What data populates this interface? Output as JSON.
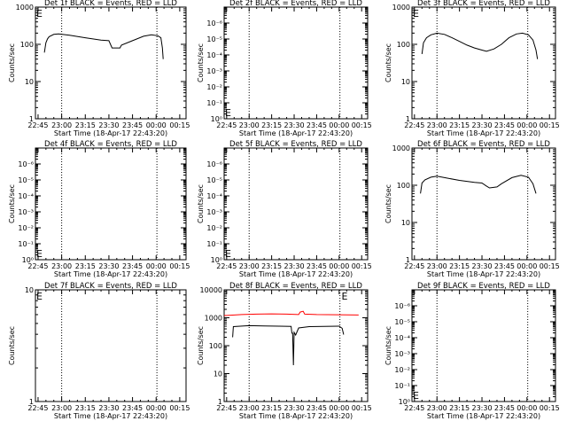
{
  "time_ticks": [
    "22:45",
    "23:00",
    "23:15",
    "23:30",
    "23:45",
    "00:00",
    "00:15"
  ],
  "xlabel": "Start Time (18-Apr-17 22:43:20)",
  "ylabel": "Counts/sec",
  "colors": {
    "events": "#000000",
    "lld": "#ff0000"
  },
  "panels": [
    {
      "title": "Det 1f BLACK = Events, RED = LLD",
      "chart_data": {
        "type": "line",
        "y_scale": "log",
        "ylim": [
          1,
          1000
        ],
        "ytick_labels": [
          "1",
          "10",
          "100",
          "1000"
        ],
        "x": [
          "22:43:20",
          "00:15:00"
        ],
        "markers": [
          {
            "label": "E",
            "x": "22:43:20"
          },
          {
            "label": "E",
            "x": "00:01:00"
          }
        ],
        "series": [
          {
            "color": "#000000",
            "points": [
              [
                "22:49",
                60
              ],
              [
                "22:50",
                110
              ],
              [
                "22:51",
                140
              ],
              [
                "22:52",
                160
              ],
              [
                "22:55",
                185
              ],
              [
                "22:58",
                190
              ],
              [
                "23:05",
                175
              ],
              [
                "23:15",
                150
              ],
              [
                "23:25",
                130
              ],
              [
                "23:30",
                125
              ],
              [
                "23:31",
                100
              ],
              [
                "23:32",
                80
              ],
              [
                "23:37",
                80
              ],
              [
                "23:38",
                95
              ],
              [
                "23:45",
                125
              ],
              [
                "23:52",
                165
              ],
              [
                "23:57",
                180
              ],
              [
                "24:01",
                170
              ],
              [
                "24:03",
                150
              ],
              [
                "24:04",
                80
              ],
              [
                "24:04.5",
                40
              ]
            ]
          }
        ]
      }
    },
    {
      "title": "Det 2f BLACK = Events, RED = LLD",
      "chart_data": {
        "type": "line",
        "y_scale": "log",
        "ylim": [
          1,
          10000000
        ],
        "ytick_labels": [
          "10⁰",
          "10⁻¹",
          "10⁻²",
          "10⁻³",
          "10⁻⁴",
          "10⁻⁵",
          "10⁻⁶"
        ],
        "markers": [
          {
            "label": "E",
            "x": "22:43:20",
            "pos": "bottom"
          },
          {
            "label": "E",
            "x": "00:01:00",
            "pos": "bottom"
          }
        ],
        "series": []
      }
    },
    {
      "title": "Det 3f BLACK = Events, RED = LLD",
      "chart_data": {
        "type": "line",
        "y_scale": "log",
        "ylim": [
          1,
          1000
        ],
        "ytick_labels": [
          "1",
          "10",
          "100",
          "1000"
        ],
        "markers": [
          {
            "label": "E",
            "x": "22:43:20"
          },
          {
            "label": "E",
            "x": "00:01:00"
          }
        ],
        "series": [
          {
            "color": "#000000",
            "points": [
              [
                "22:50",
                55
              ],
              [
                "22:51",
                110
              ],
              [
                "22:53",
                150
              ],
              [
                "22:56",
                180
              ],
              [
                "23:00",
                200
              ],
              [
                "23:05",
                185
              ],
              [
                "23:10",
                150
              ],
              [
                "23:15",
                120
              ],
              [
                "23:20",
                95
              ],
              [
                "23:25",
                80
              ],
              [
                "23:30",
                70
              ],
              [
                "23:33",
                65
              ],
              [
                "23:38",
                75
              ],
              [
                "23:43",
                100
              ],
              [
                "23:48",
                150
              ],
              [
                "23:53",
                190
              ],
              [
                "23:57",
                200
              ],
              [
                "24:01",
                180
              ],
              [
                "24:04",
                130
              ],
              [
                "24:06",
                70
              ],
              [
                "24:07",
                40
              ]
            ]
          }
        ]
      }
    },
    {
      "title": "Det 4f BLACK = Events, RED = LLD",
      "chart_data": {
        "type": "line",
        "y_scale": "log",
        "ylim": [
          1,
          10000000
        ],
        "ytick_labels": [
          "10⁰",
          "10⁻¹",
          "10⁻²",
          "10⁻³",
          "10⁻⁴",
          "10⁻⁵",
          "10⁻⁶"
        ],
        "markers": [
          {
            "label": "E",
            "x": "22:43:20",
            "pos": "bottom"
          },
          {
            "label": "E",
            "x": "00:01:00",
            "pos": "bottom"
          }
        ],
        "series": []
      }
    },
    {
      "title": "Det 5f BLACK = Events, RED = LLD",
      "chart_data": {
        "type": "line",
        "y_scale": "log",
        "ylim": [
          1,
          10000000
        ],
        "ytick_labels": [
          "10⁰",
          "10⁻¹",
          "10⁻²",
          "10⁻³",
          "10⁻⁴",
          "10⁻⁵",
          "10⁻⁶"
        ],
        "markers": [
          {
            "label": "E",
            "x": "22:43:20",
            "pos": "bottom"
          },
          {
            "label": "E",
            "x": "00:01:00",
            "pos": "bottom"
          }
        ],
        "series": []
      }
    },
    {
      "title": "Det 6f BLACK = Events, RED = LLD",
      "chart_data": {
        "type": "line",
        "y_scale": "log",
        "ylim": [
          1,
          1000
        ],
        "ytick_labels": [
          "1",
          "10",
          "100",
          "1000"
        ],
        "markers": [
          {
            "label": "E",
            "x": "00:01:00"
          }
        ],
        "series": [
          {
            "color": "#000000",
            "points": [
              [
                "22:49",
                60
              ],
              [
                "22:50",
                115
              ],
              [
                "22:52",
                140
              ],
              [
                "22:56",
                165
              ],
              [
                "23:00",
                175
              ],
              [
                "23:05",
                160
              ],
              [
                "23:15",
                135
              ],
              [
                "23:25",
                120
              ],
              [
                "23:30",
                115
              ],
              [
                "23:33",
                95
              ],
              [
                "23:35",
                85
              ],
              [
                "23:40",
                90
              ],
              [
                "23:43",
                110
              ],
              [
                "23:50",
                160
              ],
              [
                "23:56",
                185
              ],
              [
                "24:01",
                165
              ],
              [
                "24:04",
                110
              ],
              [
                "24:06",
                60
              ]
            ]
          }
        ]
      }
    },
    {
      "title": "Det 7f BLACK = Events, RED = LLD",
      "chart_data": {
        "type": "line",
        "y_scale": "log",
        "ylim": [
          1,
          10
        ],
        "ytick_labels": [
          "1",
          "10"
        ],
        "markers": [
          {
            "label": "E",
            "x": "22:43:20"
          },
          {
            "label": "E",
            "x": "00:01:00"
          }
        ],
        "series": []
      }
    },
    {
      "title": "Det 8f BLACK = Events, RED = LLD",
      "chart_data": {
        "type": "line",
        "y_scale": "log",
        "ylim": [
          1,
          10000
        ],
        "ytick_labels": [
          "1",
          "10",
          "100",
          "1000",
          "10000"
        ],
        "markers": [
          {
            "label": "E",
            "x": "24:01:00"
          }
        ],
        "series": [
          {
            "color": "#ff0000",
            "points": [
              [
                "22:43:20",
                1200
              ],
              [
                "22:55",
                1300
              ],
              [
                "23:05",
                1350
              ],
              [
                "23:15",
                1380
              ],
              [
                "23:25",
                1350
              ],
              [
                "23:33",
                1300
              ],
              [
                "23:34",
                1600
              ],
              [
                "23:36",
                1700
              ],
              [
                "23:37",
                1350
              ],
              [
                "23:45",
                1300
              ],
              [
                "24:00",
                1280
              ],
              [
                "24:13",
                1250
              ]
            ]
          },
          {
            "color": "#000000",
            "points": [
              [
                "22:49",
                200
              ],
              [
                "22:49.5",
                480
              ],
              [
                "23:00",
                520
              ],
              [
                "23:10",
                510
              ],
              [
                "23:20",
                500
              ],
              [
                "23:28",
                490
              ],
              [
                "23:28.5",
                280
              ],
              [
                "23:29",
                280
              ],
              [
                "23:29.5",
                20
              ],
              [
                "23:30",
                300
              ],
              [
                "23:31",
                240
              ],
              [
                "23:33",
                430
              ],
              [
                "23:40",
                480
              ],
              [
                "24:00",
                500
              ],
              [
                "24:02",
                420
              ],
              [
                "24:03",
                250
              ]
            ]
          }
        ]
      }
    },
    {
      "title": "Det 9f BLACK = Events, RED = LLD",
      "chart_data": {
        "type": "line",
        "y_scale": "log",
        "ylim": [
          1,
          10000000
        ],
        "ytick_labels": [
          "10⁰",
          "10⁻¹",
          "10⁻²",
          "10⁻³",
          "10⁻⁴",
          "10⁻⁵",
          "10⁻⁶"
        ],
        "markers": [
          {
            "label": "E",
            "x": "22:43:20",
            "pos": "bottom"
          },
          {
            "label": "E",
            "x": "00:01:00",
            "pos": "bottom"
          }
        ],
        "series": []
      }
    }
  ]
}
